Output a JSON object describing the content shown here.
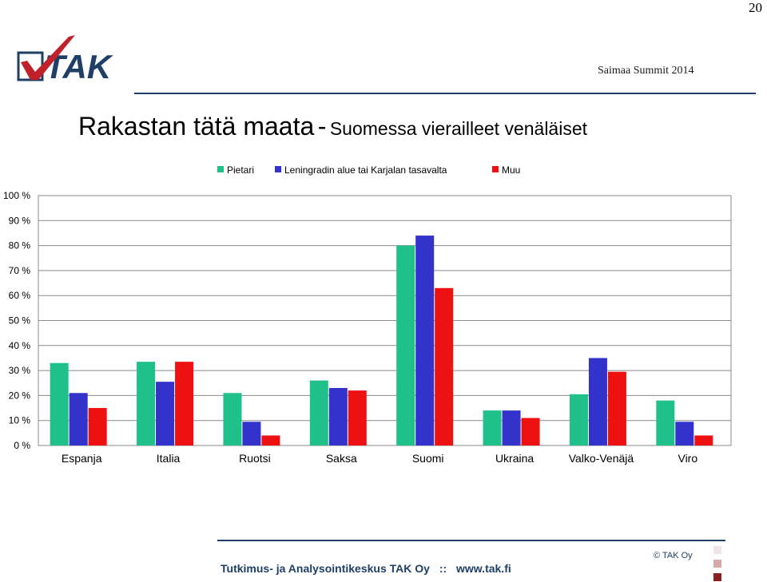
{
  "page_number": "20",
  "header": {
    "event": "Saimaa Summit 2014",
    "logo_text": "TAK"
  },
  "title": {
    "main": "Rakastan tätä maata",
    "separator": "-",
    "subtitle": "Suomessa vierailleet venäläiset"
  },
  "footer": {
    "organization": "Tutkimus- ja Analysointikeskus TAK Oy",
    "divider": "::",
    "website": "www.tak.fi",
    "copyright": "© TAK Oy"
  },
  "colors": {
    "accent": "#1f3f66",
    "logo_check": "#c0202a",
    "square_1": "#f1e4e4",
    "square_2": "#d8a9a9",
    "square_3": "#8b2020"
  },
  "chart_data": {
    "type": "bar",
    "categories": [
      "Espanja",
      "Italia",
      "Ruotsi",
      "Saksa",
      "Suomi",
      "Ukraina",
      "Valko-Venäjä",
      "Viro"
    ],
    "series": [
      {
        "name": "Pietari",
        "color": "#1fc08a",
        "values": [
          33,
          33.5,
          21,
          26,
          80,
          14,
          20.5,
          18
        ]
      },
      {
        "name": "Leningradin alue tai Karjalan tasavalta",
        "color": "#3333cc",
        "values": [
          21,
          25.5,
          9.5,
          23,
          84,
          14,
          35,
          9.5
        ]
      },
      {
        "name": "Muu",
        "color": "#ee1111",
        "values": [
          15,
          33.5,
          4,
          22,
          63,
          11,
          29.5,
          4
        ]
      }
    ],
    "yticks": [
      "0 %",
      "10 %",
      "20 %",
      "30 %",
      "40 %",
      "50 %",
      "60 %",
      "70 %",
      "80 %",
      "90 %",
      "100 %"
    ],
    "ylim": [
      0,
      100
    ],
    "grid": true,
    "legend_position": "top"
  }
}
